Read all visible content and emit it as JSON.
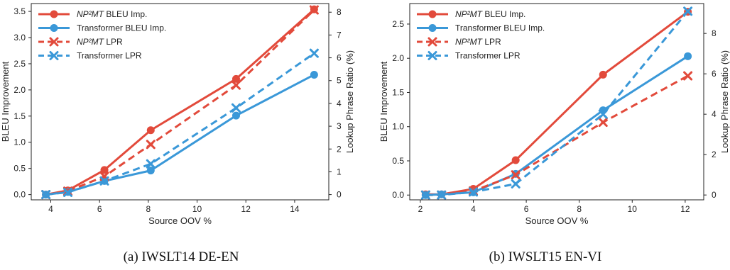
{
  "captions": [
    "(a) IWSLT14 DE-EN",
    "(b) IWSLT15 EN-VI"
  ],
  "chart_data": [
    {
      "type": "line",
      "xlabel": "Source OOV %",
      "ylabel": "BLEU Improvement",
      "y2label": "Lookup Phrase Ratio (%)",
      "xticks": [
        4,
        6,
        8,
        10,
        12,
        14
      ],
      "yticks": [
        "0.0",
        "0.5",
        "1.0",
        "1.5",
        "2.0",
        "2.5",
        "3.0",
        "3.5"
      ],
      "y2ticks": [
        0,
        1,
        2,
        3,
        4,
        5,
        6,
        7,
        8
      ],
      "xlim": [
        3.2,
        15.4
      ],
      "ylim": [
        -0.1,
        3.65
      ],
      "y2lim": [
        -0.23,
        8.38
      ],
      "legend_position": "top-left",
      "colors": {
        "np2mt": "#e24a3b",
        "transformer": "#3a98d8"
      },
      "series": [
        {
          "name": "NP²MT BLEU Imp.",
          "axis": "left",
          "style": "solid",
          "marker": "circle",
          "color": "#e24a3b",
          "x": [
            3.8,
            4.7,
            6.2,
            8.1,
            11.6,
            14.8
          ],
          "y": [
            0.0,
            0.08,
            0.47,
            1.23,
            2.21,
            3.54
          ]
        },
        {
          "name": "Transformer BLEU Imp.",
          "axis": "left",
          "style": "solid",
          "marker": "circle",
          "color": "#3a98d8",
          "x": [
            3.8,
            4.7,
            6.2,
            8.1,
            11.6,
            14.8
          ],
          "y": [
            0.0,
            0.05,
            0.26,
            0.46,
            1.51,
            2.29
          ]
        },
        {
          "name": "NP²MT LPR",
          "axis": "right",
          "style": "dashed",
          "marker": "x",
          "color": "#e24a3b",
          "x": [
            3.8,
            4.7,
            6.2,
            8.1,
            11.6,
            14.8
          ],
          "y": [
            0.0,
            0.15,
            0.8,
            2.2,
            4.8,
            8.1
          ]
        },
        {
          "name": "Transformer LPR",
          "axis": "right",
          "style": "dashed",
          "marker": "x",
          "color": "#3a98d8",
          "x": [
            3.8,
            4.7,
            6.2,
            8.1,
            11.6,
            14.8
          ],
          "y": [
            0.0,
            0.1,
            0.6,
            1.35,
            3.8,
            6.2
          ]
        }
      ]
    },
    {
      "type": "line",
      "xlabel": "Source OOV %",
      "ylabel": "BLEU Improvement",
      "y2label": "Lookup Phrase Ratio (%)",
      "xticks": [
        2,
        4,
        6,
        8,
        10,
        12
      ],
      "yticks": [
        "0.0",
        "0.5",
        "1.0",
        "1.5",
        "2.0",
        "2.5"
      ],
      "y2ticks": [
        0,
        2,
        4,
        6,
        8
      ],
      "xlim": [
        1.6,
        12.7
      ],
      "ylim": [
        -0.07,
        2.8
      ],
      "y2lim": [
        -0.24,
        9.48
      ],
      "legend_position": "top-left",
      "colors": {
        "np2mt": "#e24a3b",
        "transformer": "#3a98d8"
      },
      "series": [
        {
          "name": "NP²MT BLEU Imp.",
          "axis": "left",
          "style": "solid",
          "marker": "circle",
          "color": "#e24a3b",
          "x": [
            2.2,
            2.8,
            4.0,
            5.6,
            8.9,
            12.1
          ],
          "y": [
            0.01,
            0.01,
            0.09,
            0.51,
            1.76,
            2.68
          ]
        },
        {
          "name": "Transformer BLEU Imp.",
          "axis": "left",
          "style": "solid",
          "marker": "circle",
          "color": "#3a98d8",
          "x": [
            2.2,
            2.8,
            4.0,
            5.6,
            8.9,
            12.1
          ],
          "y": [
            0.0,
            0.01,
            0.04,
            0.31,
            1.24,
            2.03
          ]
        },
        {
          "name": "NP²MT LPR",
          "axis": "right",
          "style": "dashed",
          "marker": "x",
          "color": "#e24a3b",
          "x": [
            2.2,
            2.8,
            4.0,
            5.6,
            8.9,
            12.1
          ],
          "y": [
            0.0,
            0.0,
            0.2,
            1.0,
            3.6,
            5.9
          ]
        },
        {
          "name": "Transformer LPR",
          "axis": "right",
          "style": "dashed",
          "marker": "x",
          "color": "#3a98d8",
          "x": [
            2.2,
            2.8,
            4.0,
            5.6,
            8.9,
            12.1
          ],
          "y": [
            0.0,
            0.0,
            0.15,
            0.55,
            4.0,
            9.1
          ]
        }
      ]
    }
  ]
}
